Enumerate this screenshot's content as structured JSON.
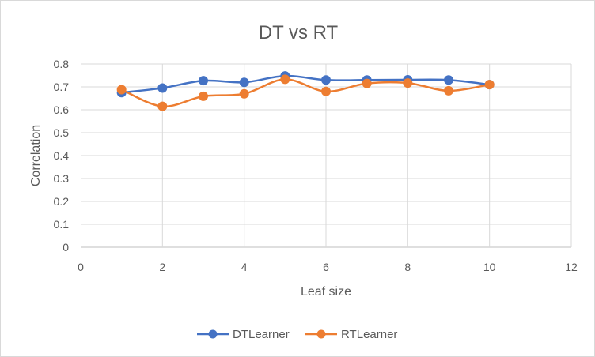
{
  "chart_data": {
    "type": "line",
    "title": "DT vs RT",
    "xlabel": "Leaf size",
    "ylabel": "Correlation",
    "xlim": [
      0,
      12
    ],
    "ylim": [
      0,
      0.8
    ],
    "xticks": [
      0,
      2,
      4,
      6,
      8,
      10,
      12
    ],
    "yticks": [
      0,
      0.1,
      0.2,
      0.3,
      0.4,
      0.5,
      0.6,
      0.7,
      0.8
    ],
    "ytick_labels": [
      "0",
      "0.1",
      "0.2",
      "0.3",
      "0.4",
      "0.5",
      "0.6",
      "0.7",
      "0.8"
    ],
    "grid": "horizontal",
    "legend_position": "bottom",
    "smoothed": true,
    "x": [
      1,
      2,
      3,
      4,
      5,
      6,
      7,
      8,
      9,
      10
    ],
    "series": [
      {
        "name": "DTLearner",
        "color": "#4472c4",
        "values": [
          0.675,
          0.695,
          0.727,
          0.72,
          0.748,
          0.73,
          0.73,
          0.731,
          0.73,
          0.71
        ]
      },
      {
        "name": "RTLearner",
        "color": "#ed7d31",
        "values": [
          0.688,
          0.615,
          0.659,
          0.67,
          0.733,
          0.68,
          0.715,
          0.717,
          0.683,
          0.71
        ]
      }
    ]
  }
}
